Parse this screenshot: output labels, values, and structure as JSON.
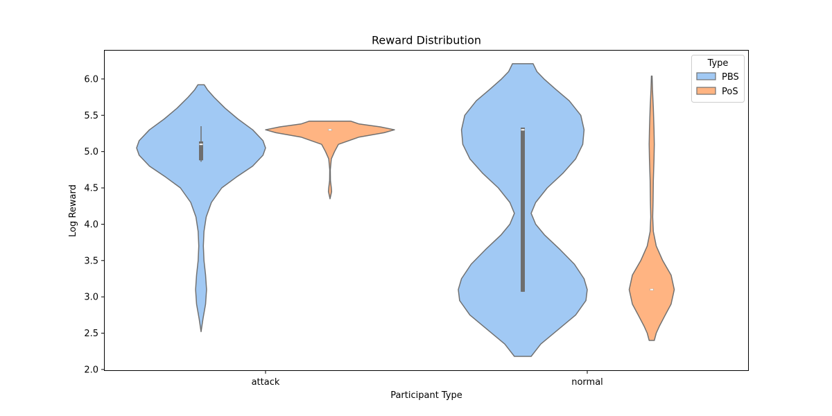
{
  "chart_data": {
    "type": "violin",
    "title": "Reward Distribution",
    "xlabel": "Participant Type",
    "ylabel": "Log Reward",
    "categories": [
      "attack",
      "normal"
    ],
    "ylim": [
      1.98,
      6.4
    ],
    "yticks": [
      2.0,
      2.5,
      3.0,
      3.5,
      4.0,
      4.5,
      5.0,
      5.5,
      6.0
    ],
    "ytick_labels": [
      "2.0",
      "2.5",
      "3.0",
      "3.5",
      "4.0",
      "4.5",
      "5.0",
      "5.5",
      "6.0"
    ],
    "legend": {
      "title": "Type",
      "position": "top-right"
    },
    "grid": false,
    "series": [
      {
        "name": "PBS",
        "color": "#a1c9f4",
        "violins": [
          {
            "category": "attack",
            "min": 2.52,
            "max": 5.92,
            "q1": 4.88,
            "median": 5.1,
            "q3": 5.14,
            "whisker_low": 4.86,
            "whisker_high": 5.35,
            "profile": [
              [
                2.52,
                0.0
              ],
              [
                2.7,
                0.03
              ],
              [
                2.9,
                0.07
              ],
              [
                3.1,
                0.085
              ],
              [
                3.3,
                0.07
              ],
              [
                3.5,
                0.045
              ],
              [
                3.7,
                0.035
              ],
              [
                3.9,
                0.045
              ],
              [
                4.1,
                0.08
              ],
              [
                4.3,
                0.16
              ],
              [
                4.5,
                0.32
              ],
              [
                4.65,
                0.55
              ],
              [
                4.8,
                0.8
              ],
              [
                4.95,
                0.96
              ],
              [
                5.05,
                1.0
              ],
              [
                5.15,
                0.96
              ],
              [
                5.3,
                0.8
              ],
              [
                5.45,
                0.57
              ],
              [
                5.6,
                0.37
              ],
              [
                5.75,
                0.2
              ],
              [
                5.85,
                0.1
              ],
              [
                5.92,
                0.05
              ]
            ]
          },
          {
            "category": "normal",
            "min": 2.18,
            "max": 6.21,
            "q1": 3.07,
            "median": 5.3,
            "q3": 5.33,
            "whisker_low": 3.07,
            "whisker_high": 5.33,
            "profile": [
              [
                2.18,
                0.13
              ],
              [
                2.35,
                0.28
              ],
              [
                2.55,
                0.55
              ],
              [
                2.75,
                0.82
              ],
              [
                2.95,
                0.98
              ],
              [
                3.1,
                1.0
              ],
              [
                3.25,
                0.95
              ],
              [
                3.45,
                0.8
              ],
              [
                3.65,
                0.58
              ],
              [
                3.85,
                0.34
              ],
              [
                4.0,
                0.2
              ],
              [
                4.15,
                0.13
              ],
              [
                4.3,
                0.2
              ],
              [
                4.5,
                0.38
              ],
              [
                4.7,
                0.62
              ],
              [
                4.9,
                0.82
              ],
              [
                5.1,
                0.93
              ],
              [
                5.3,
                0.95
              ],
              [
                5.5,
                0.9
              ],
              [
                5.7,
                0.72
              ],
              [
                5.85,
                0.52
              ],
              [
                6.0,
                0.33
              ],
              [
                6.1,
                0.22
              ],
              [
                6.21,
                0.16
              ]
            ]
          }
        ]
      },
      {
        "name": "PoS",
        "color": "#ffb482",
        "violins": [
          {
            "category": "attack",
            "min": 4.35,
            "max": 5.42,
            "q1": 5.29,
            "median": 5.3,
            "q3": 5.31,
            "whisker_low": 5.29,
            "whisker_high": 5.31,
            "profile": [
              [
                4.35,
                0.0
              ],
              [
                4.45,
                0.025
              ],
              [
                4.5,
                0.02
              ],
              [
                4.6,
                0.006
              ],
              [
                4.75,
                0.004
              ],
              [
                4.9,
                0.02
              ],
              [
                5.0,
                0.07
              ],
              [
                5.1,
                0.13
              ],
              [
                5.2,
                0.45
              ],
              [
                5.26,
                0.84
              ],
              [
                5.3,
                1.0
              ],
              [
                5.34,
                0.78
              ],
              [
                5.38,
                0.45
              ],
              [
                5.42,
                0.32
              ]
            ]
          },
          {
            "category": "normal",
            "min": 2.4,
            "max": 6.04,
            "q1": 3.09,
            "median": 3.1,
            "q3": 3.11,
            "whisker_low": 3.09,
            "whisker_high": 3.11,
            "profile": [
              [
                2.4,
                0.04
              ],
              [
                2.5,
                0.07
              ],
              [
                2.6,
                0.12
              ],
              [
                2.75,
                0.21
              ],
              [
                2.9,
                0.3
              ],
              [
                3.1,
                0.35
              ],
              [
                3.3,
                0.3
              ],
              [
                3.5,
                0.17
              ],
              [
                3.7,
                0.07
              ],
              [
                3.9,
                0.025
              ],
              [
                4.1,
                0.015
              ],
              [
                4.3,
                0.02
              ],
              [
                4.6,
                0.025
              ],
              [
                4.9,
                0.035
              ],
              [
                5.1,
                0.04
              ],
              [
                5.3,
                0.035
              ],
              [
                5.6,
                0.025
              ],
              [
                5.85,
                0.012
              ],
              [
                6.04,
                0.005
              ]
            ]
          }
        ]
      }
    ]
  }
}
